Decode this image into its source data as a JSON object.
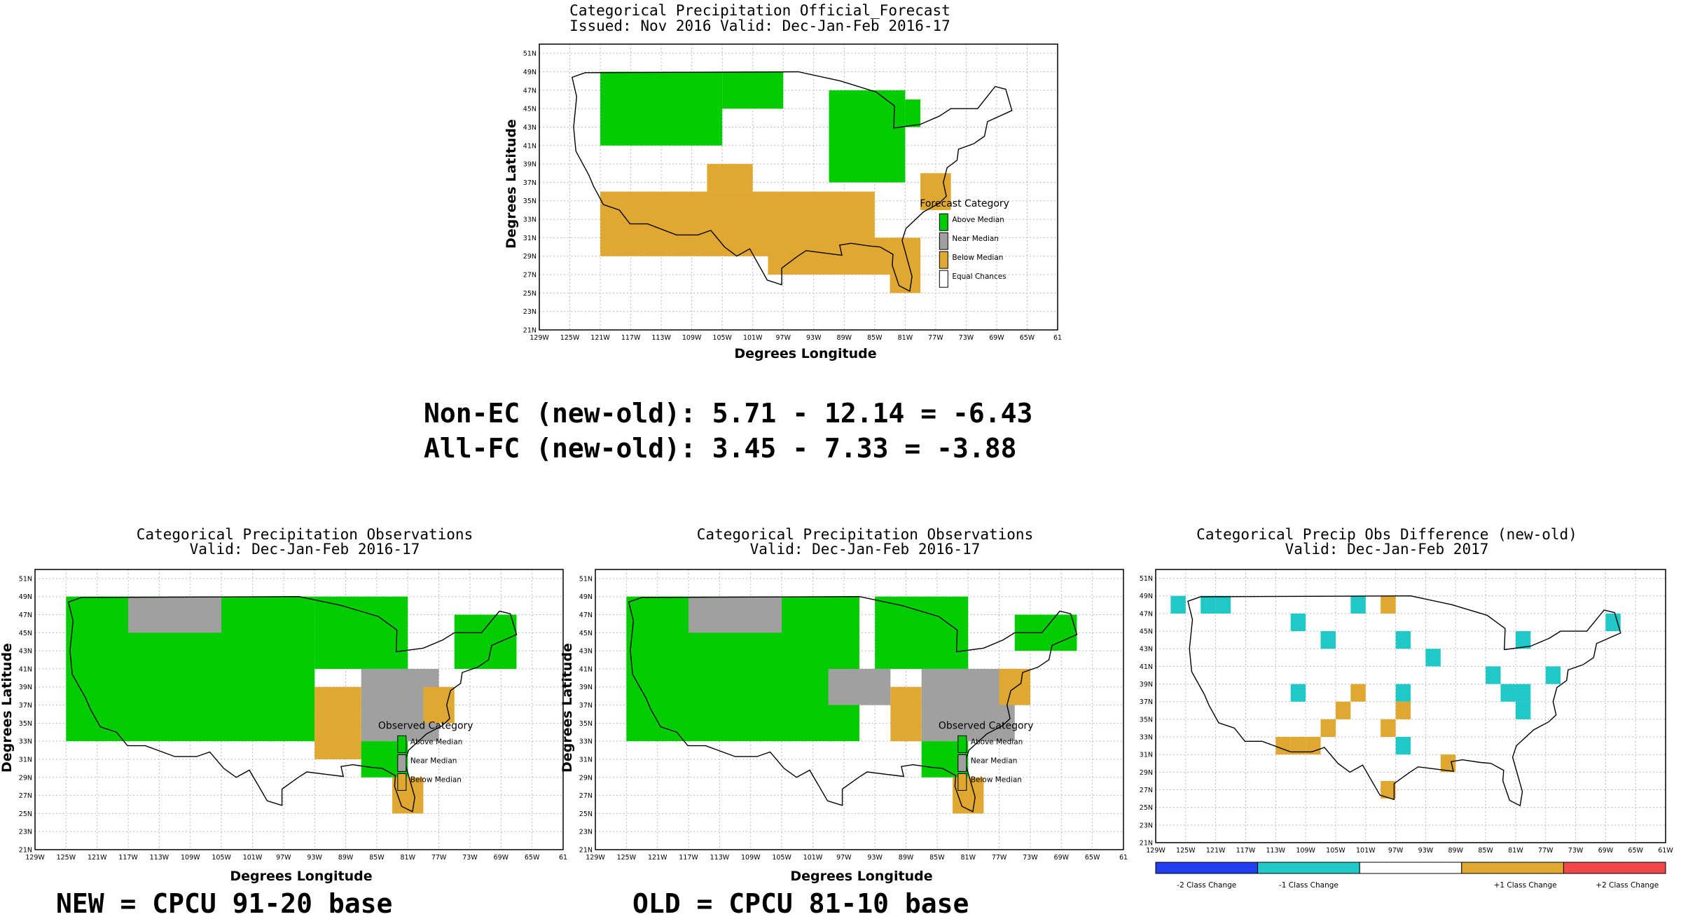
{
  "chart_data": [
    {
      "type": "heatmap",
      "title": "Categorical Precipitation Official_Forecast",
      "subtitle": "Issued: Nov 2016 Valid: Dec-Jan-Feb 2016-17",
      "xlabel": "Degrees Longitude",
      "ylabel": "Degrees Latitude",
      "x_ticks": [
        "129W",
        "125W",
        "121W",
        "117W",
        "113W",
        "109W",
        "105W",
        "101W",
        "97W",
        "93W",
        "89W",
        "85W",
        "81W",
        "77W",
        "73W",
        "69W",
        "65W",
        "61"
      ],
      "y_ticks": [
        "21N",
        "23N",
        "25N",
        "27N",
        "29N",
        "31N",
        "33N",
        "35N",
        "37N",
        "39N",
        "41N",
        "43N",
        "45N",
        "47N",
        "49N",
        "51N"
      ],
      "xlim": [
        -129,
        -61
      ],
      "ylim": [
        21,
        52
      ],
      "grid": true,
      "legend_title": "Forecast Category",
      "legend": [
        {
          "label": "Above Median",
          "color": "#00cc00"
        },
        {
          "label": "Near Median",
          "color": "#a0a0a0"
        },
        {
          "label": "Below Median",
          "color": "#e0a830"
        },
        {
          "label": "Equal Chances",
          "color": "#ffffff"
        }
      ],
      "regions": [
        {
          "category": "Above Median",
          "lon": [
            -121,
            -105
          ],
          "lat": [
            41,
            49
          ]
        },
        {
          "category": "Above Median",
          "lon": [
            -105,
            -97
          ],
          "lat": [
            45,
            49
          ]
        },
        {
          "category": "Above Median",
          "lon": [
            -91,
            -81
          ],
          "lat": [
            37,
            47
          ]
        },
        {
          "category": "Above Median",
          "lon": [
            -81,
            -79
          ],
          "lat": [
            43,
            46
          ]
        },
        {
          "category": "Below Median",
          "lon": [
            -121,
            -85
          ],
          "lat": [
            29,
            36
          ]
        },
        {
          "category": "Below Median",
          "lon": [
            -107,
            -101
          ],
          "lat": [
            36,
            39
          ]
        },
        {
          "category": "Below Median",
          "lon": [
            -99,
            -81
          ],
          "lat": [
            27,
            31
          ]
        },
        {
          "category": "Below Median",
          "lon": [
            -83,
            -79
          ],
          "lat": [
            25,
            31
          ]
        },
        {
          "category": "Below Median",
          "lon": [
            -79,
            -75
          ],
          "lat": [
            34,
            38
          ]
        }
      ]
    },
    {
      "type": "heatmap",
      "title": "Categorical Precipitation Observations",
      "subtitle": "Valid: Dec-Jan-Feb 2016-17",
      "xlabel": "Degrees Longitude",
      "ylabel": "Degrees Latitude",
      "x_ticks": [
        "129W",
        "125W",
        "121W",
        "117W",
        "113W",
        "109W",
        "105W",
        "101W",
        "97W",
        "93W",
        "89W",
        "85W",
        "81W",
        "77W",
        "73W",
        "69W",
        "65W",
        "61"
      ],
      "y_ticks": [
        "21N",
        "23N",
        "25N",
        "27N",
        "29N",
        "31N",
        "33N",
        "35N",
        "37N",
        "39N",
        "41N",
        "43N",
        "45N",
        "47N",
        "49N",
        "51N"
      ],
      "xlim": [
        -129,
        -61
      ],
      "ylim": [
        21,
        52
      ],
      "grid": true,
      "legend_title": "Observed Category",
      "legend": [
        {
          "label": "Above Median",
          "color": "#00cc00"
        },
        {
          "label": "Near Median",
          "color": "#a0a0a0"
        },
        {
          "label": "Below Median",
          "color": "#e0a830"
        }
      ],
      "regions": [
        {
          "category": "Above Median",
          "lon": [
            -125,
            -93
          ],
          "lat": [
            33,
            49
          ]
        },
        {
          "category": "Near Median",
          "lon": [
            -117,
            -105
          ],
          "lat": [
            45,
            49
          ]
        },
        {
          "category": "Above Median",
          "lon": [
            -93,
            -81
          ],
          "lat": [
            41,
            49
          ]
        },
        {
          "category": "Below Median",
          "lon": [
            -93,
            -87
          ],
          "lat": [
            31,
            39
          ]
        },
        {
          "category": "Near Median",
          "lon": [
            -87,
            -77
          ],
          "lat": [
            33,
            41
          ]
        },
        {
          "category": "Above Median",
          "lon": [
            -87,
            -81
          ],
          "lat": [
            29,
            33
          ]
        },
        {
          "category": "Below Median",
          "lon": [
            -83,
            -79
          ],
          "lat": [
            25,
            29
          ]
        },
        {
          "category": "Below Median",
          "lon": [
            -79,
            -75
          ],
          "lat": [
            35,
            39
          ]
        },
        {
          "category": "Above Median",
          "lon": [
            -75,
            -67
          ],
          "lat": [
            41,
            47
          ]
        }
      ],
      "footer": "NEW = CPCU 91-20 base"
    },
    {
      "type": "heatmap",
      "title": "Categorical Precipitation Observations",
      "subtitle": "Valid: Dec-Jan-Feb 2016-17",
      "xlabel": "Degrees Longitude",
      "ylabel": "Degrees Latitude",
      "x_ticks": [
        "129W",
        "125W",
        "121W",
        "117W",
        "113W",
        "109W",
        "105W",
        "101W",
        "97W",
        "93W",
        "89W",
        "85W",
        "81W",
        "77W",
        "73W",
        "69W",
        "65W",
        "61"
      ],
      "y_ticks": [
        "21N",
        "23N",
        "25N",
        "27N",
        "29N",
        "31N",
        "33N",
        "35N",
        "37N",
        "39N",
        "41N",
        "43N",
        "45N",
        "47N",
        "49N",
        "51N"
      ],
      "xlim": [
        -129,
        -61
      ],
      "ylim": [
        21,
        52
      ],
      "grid": true,
      "legend_title": "Observed Category",
      "legend": [
        {
          "label": "Above Median",
          "color": "#00cc00"
        },
        {
          "label": "Near Median",
          "color": "#a0a0a0"
        },
        {
          "label": "Below Median",
          "color": "#e0a830"
        }
      ],
      "regions": [
        {
          "category": "Above Median",
          "lon": [
            -125,
            -95
          ],
          "lat": [
            33,
            49
          ]
        },
        {
          "category": "Near Median",
          "lon": [
            -117,
            -105
          ],
          "lat": [
            45,
            49
          ]
        },
        {
          "category": "Above Median",
          "lon": [
            -93,
            -81
          ],
          "lat": [
            41,
            49
          ]
        },
        {
          "category": "Near Median",
          "lon": [
            -99,
            -91
          ],
          "lat": [
            37,
            41
          ]
        },
        {
          "category": "Below Median",
          "lon": [
            -91,
            -87
          ],
          "lat": [
            33,
            39
          ]
        },
        {
          "category": "Near Median",
          "lon": [
            -87,
            -75
          ],
          "lat": [
            33,
            41
          ]
        },
        {
          "category": "Above Median",
          "lon": [
            -87,
            -81
          ],
          "lat": [
            29,
            33
          ]
        },
        {
          "category": "Below Median",
          "lon": [
            -83,
            -79
          ],
          "lat": [
            25,
            29
          ]
        },
        {
          "category": "Below Median",
          "lon": [
            -77,
            -73
          ],
          "lat": [
            37,
            41
          ]
        },
        {
          "category": "Above Median",
          "lon": [
            -75,
            -67
          ],
          "lat": [
            43,
            47
          ]
        }
      ],
      "footer": "OLD = CPCU 81-10 base"
    },
    {
      "type": "heatmap",
      "title": "Categorical Precip Obs Difference (new-old)",
      "subtitle": "Valid: Dec-Jan-Feb 2017",
      "x_ticks": [
        "129W",
        "125W",
        "121W",
        "117W",
        "113W",
        "109W",
        "105W",
        "101W",
        "97W",
        "93W",
        "89W",
        "85W",
        "81W",
        "77W",
        "73W",
        "69W",
        "65W",
        "61W"
      ],
      "y_ticks": [
        "21N",
        "23N",
        "25N",
        "27N",
        "29N",
        "31N",
        "33N",
        "35N",
        "37N",
        "39N",
        "41N",
        "43N",
        "45N",
        "47N",
        "49N",
        "51N"
      ],
      "xlim": [
        -129,
        -61
      ],
      "ylim": [
        21,
        52
      ],
      "grid": true,
      "colorbar": [
        {
          "label": "-2 Class Change",
          "color": "#2040f0"
        },
        {
          "label": "-1 Class Change",
          "color": "#20c8c8"
        },
        {
          "label": "",
          "color": "#ffffff"
        },
        {
          "label": "+1 Class Change",
          "color": "#e0a830"
        },
        {
          "label": "+2 Class Change",
          "color": "#f04848"
        }
      ],
      "cells": [
        {
          "category": "-1 Class Change",
          "lon": -126,
          "lat": 48
        },
        {
          "category": "-1 Class Change",
          "lon": -122,
          "lat": 48
        },
        {
          "category": "-1 Class Change",
          "lon": -120,
          "lat": 48
        },
        {
          "category": "-1 Class Change",
          "lon": -110,
          "lat": 46
        },
        {
          "category": "-1 Class Change",
          "lon": -106,
          "lat": 44
        },
        {
          "category": "-1 Class Change",
          "lon": -102,
          "lat": 48
        },
        {
          "category": "+1 Class Change",
          "lon": -98,
          "lat": 48
        },
        {
          "category": "-1 Class Change",
          "lon": -96,
          "lat": 44
        },
        {
          "category": "-1 Class Change",
          "lon": -92,
          "lat": 42
        },
        {
          "category": "-1 Class Change",
          "lon": -80,
          "lat": 44
        },
        {
          "category": "-1 Class Change",
          "lon": -84,
          "lat": 40
        },
        {
          "category": "-1 Class Change",
          "lon": -82,
          "lat": 38
        },
        {
          "category": "-1 Class Change",
          "lon": -80,
          "lat": 38
        },
        {
          "category": "-1 Class Change",
          "lon": -80,
          "lat": 36
        },
        {
          "category": "-1 Class Change",
          "lon": -76,
          "lat": 40
        },
        {
          "category": "-1 Class Change",
          "lon": -68,
          "lat": 46
        },
        {
          "category": "-1 Class Change",
          "lon": -110,
          "lat": 38
        },
        {
          "category": "+1 Class Change",
          "lon": -102,
          "lat": 38
        },
        {
          "category": "+1 Class Change",
          "lon": -104,
          "lat": 36
        },
        {
          "category": "+1 Class Change",
          "lon": -106,
          "lat": 34
        },
        {
          "category": "+1 Class Change",
          "lon": -108,
          "lat": 32
        },
        {
          "category": "+1 Class Change",
          "lon": -112,
          "lat": 32
        },
        {
          "category": "+1 Class Change",
          "lon": -110,
          "lat": 32
        },
        {
          "category": "-1 Class Change",
          "lon": -96,
          "lat": 38
        },
        {
          "category": "+1 Class Change",
          "lon": -98,
          "lat": 34
        },
        {
          "category": "+1 Class Change",
          "lon": -96,
          "lat": 36
        },
        {
          "category": "-1 Class Change",
          "lon": -96,
          "lat": 32
        },
        {
          "category": "+1 Class Change",
          "lon": -90,
          "lat": 30
        },
        {
          "category": "+1 Class Change",
          "lon": -98,
          "lat": 27
        }
      ]
    }
  ],
  "stats": {
    "line1": "Non-EC (new-old): 5.71 - 12.14 = -6.43",
    "line2": "All-FC (new-old): 3.45 - 7.33 = -3.88"
  },
  "footers": {
    "new": "NEW = CPCU 91-20 base",
    "old": "OLD = CPCU 81-10 base"
  }
}
